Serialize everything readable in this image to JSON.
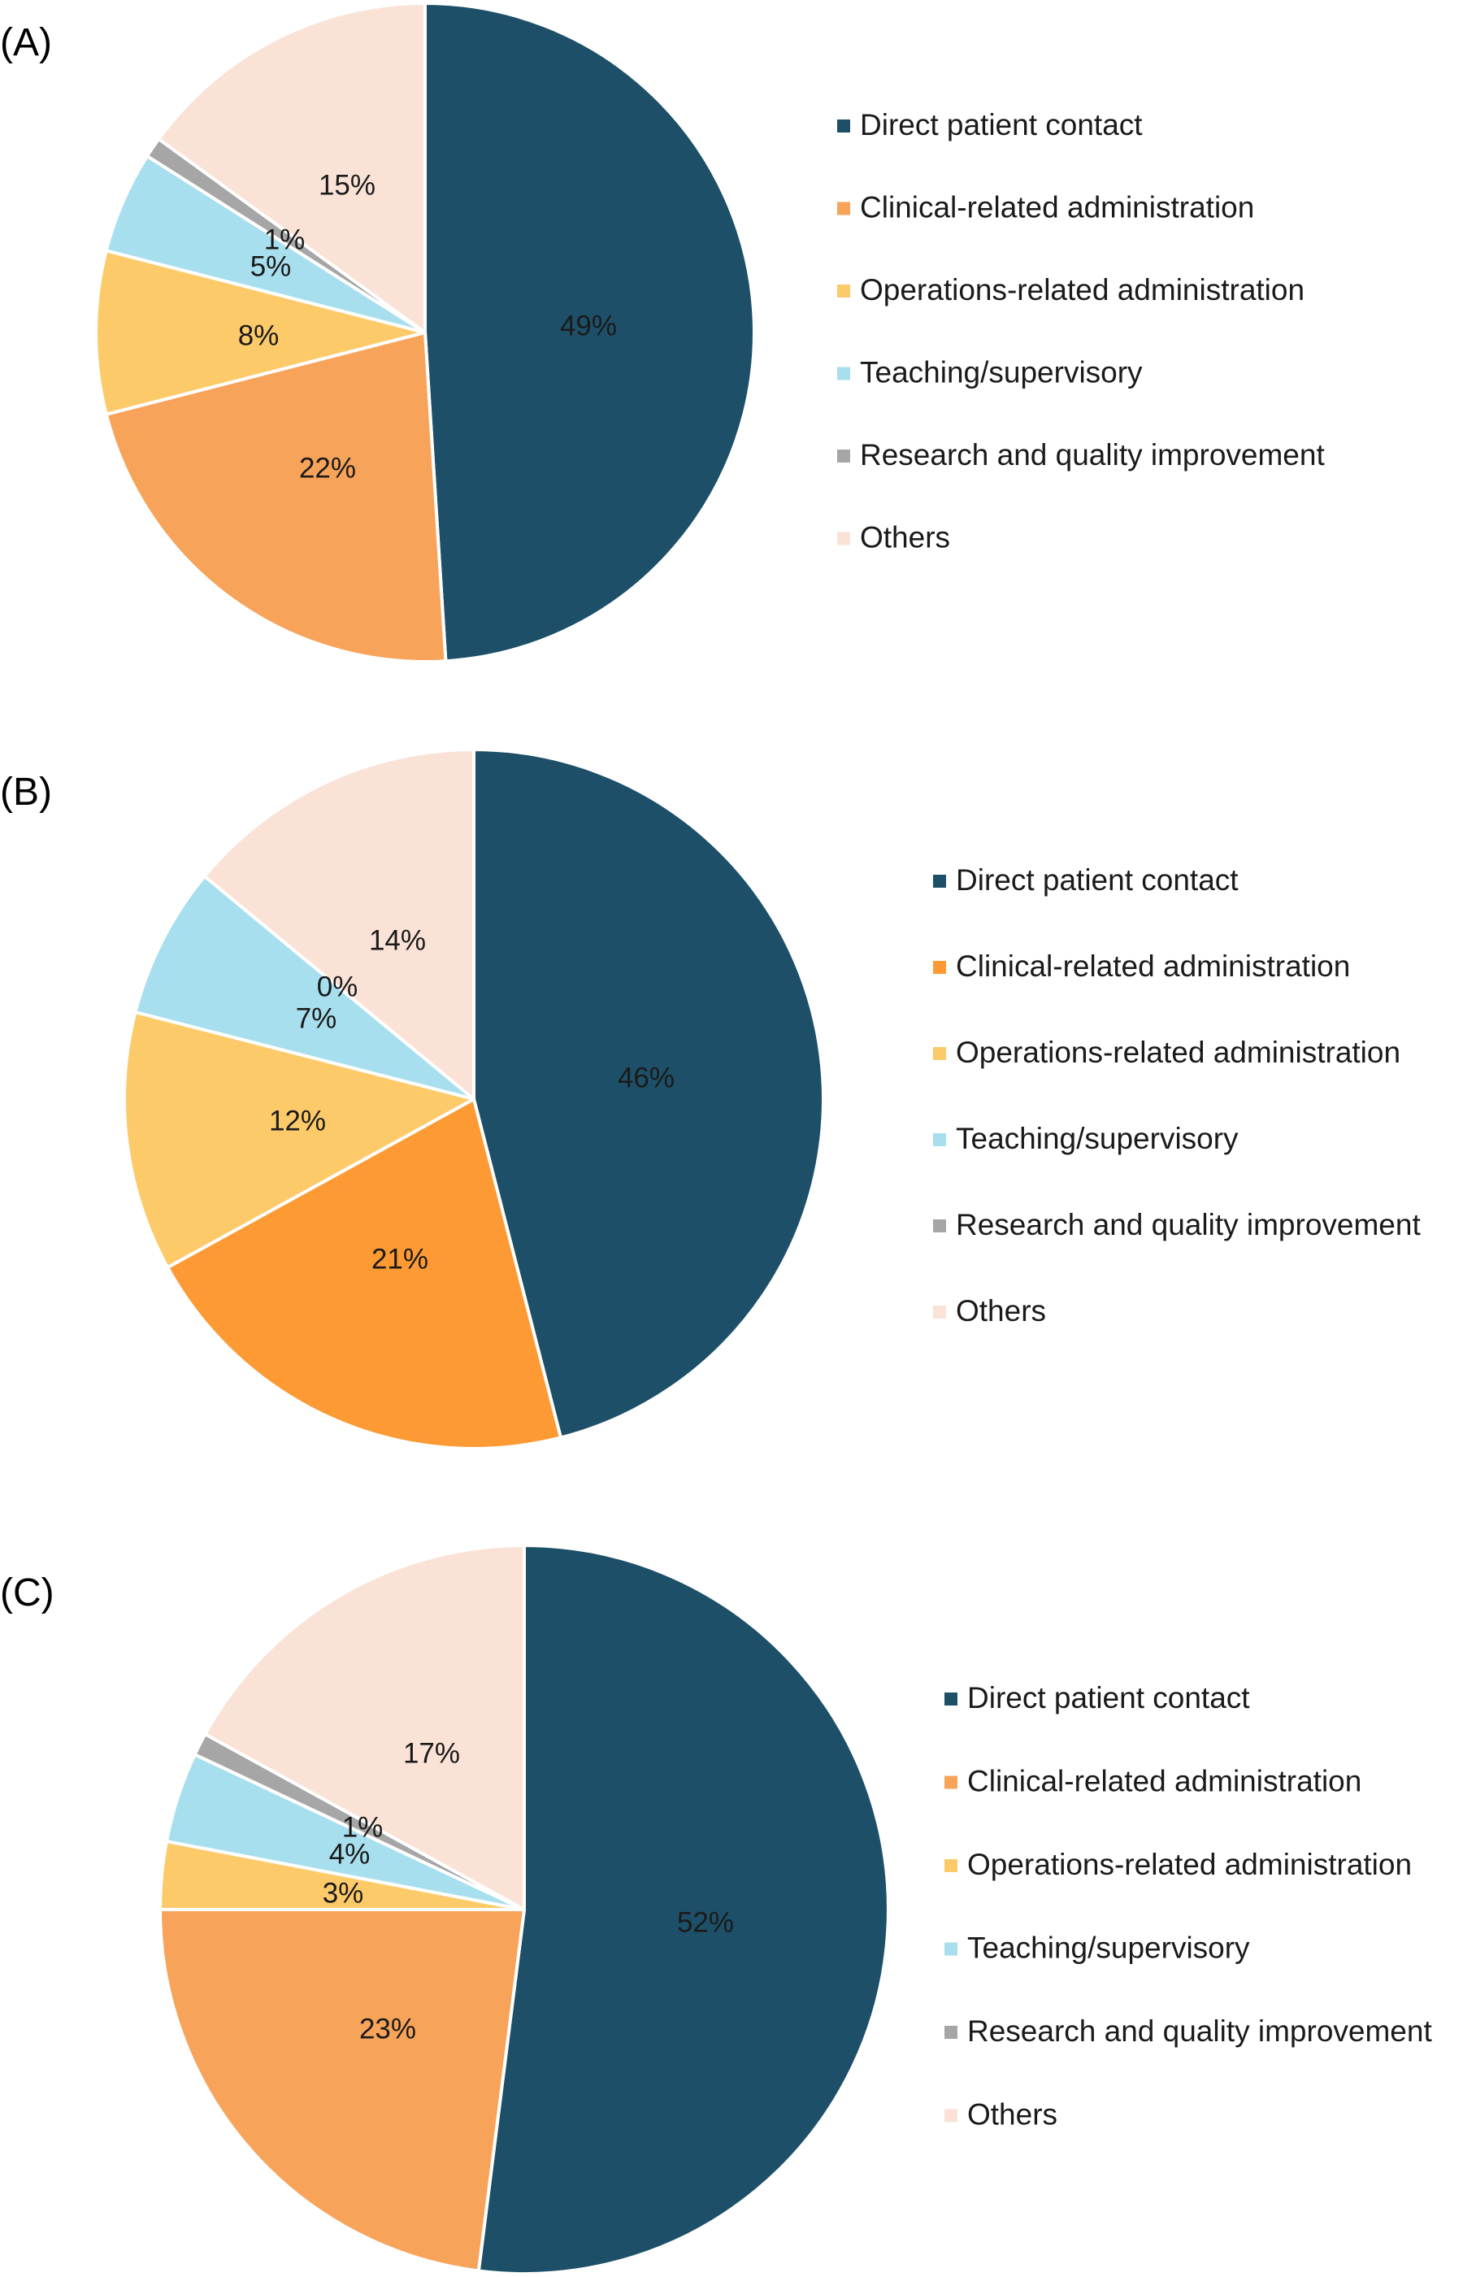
{
  "chart_data": [
    {
      "panel": "(A)",
      "type": "pie",
      "legend_position": "right",
      "categories": [
        "Direct patient contact",
        "Clinical-related administration",
        "Operations-related administration",
        "Teaching/supervisory",
        "Research and quality improvement",
        "Others"
      ],
      "values": [
        49,
        22,
        8,
        5,
        1,
        15
      ],
      "labels": [
        "49%",
        "22%",
        "8%",
        "5%",
        "1%",
        "15%"
      ],
      "colors": [
        "#1d5068",
        "#f8a35a",
        "#fdca6a",
        "#a8dfee",
        "#a6a6a6",
        "#fae2d6"
      ]
    },
    {
      "panel": "(B)",
      "type": "pie",
      "legend_position": "right",
      "categories": [
        "Direct patient contact",
        "Clinical-related administration",
        "Operations-related administration",
        "Teaching/supervisory",
        "Research and quality improvement",
        "Others"
      ],
      "values": [
        46,
        21,
        12,
        7,
        0,
        14
      ],
      "labels": [
        "46%",
        "21%",
        "12%",
        "7%",
        "0%",
        "14%"
      ],
      "colors": [
        "#1d5068",
        "#fd9a34",
        "#fdca6a",
        "#a8dfee",
        "#a6a6a6",
        "#fae2d6"
      ]
    },
    {
      "panel": "(C)",
      "type": "pie",
      "legend_position": "right",
      "categories": [
        "Direct patient contact",
        "Clinical-related administration",
        "Operations-related administration",
        "Teaching/supervisory",
        "Research and quality improvement",
        "Others"
      ],
      "values": [
        52,
        23,
        3,
        4,
        1,
        17
      ],
      "labels": [
        "52%",
        "23%",
        "3%",
        "4%",
        "1%",
        "17%"
      ],
      "colors": [
        "#1d5068",
        "#f8a35a",
        "#fdca6a",
        "#a8dfee",
        "#a6a6a6",
        "#fae2d6"
      ]
    }
  ]
}
